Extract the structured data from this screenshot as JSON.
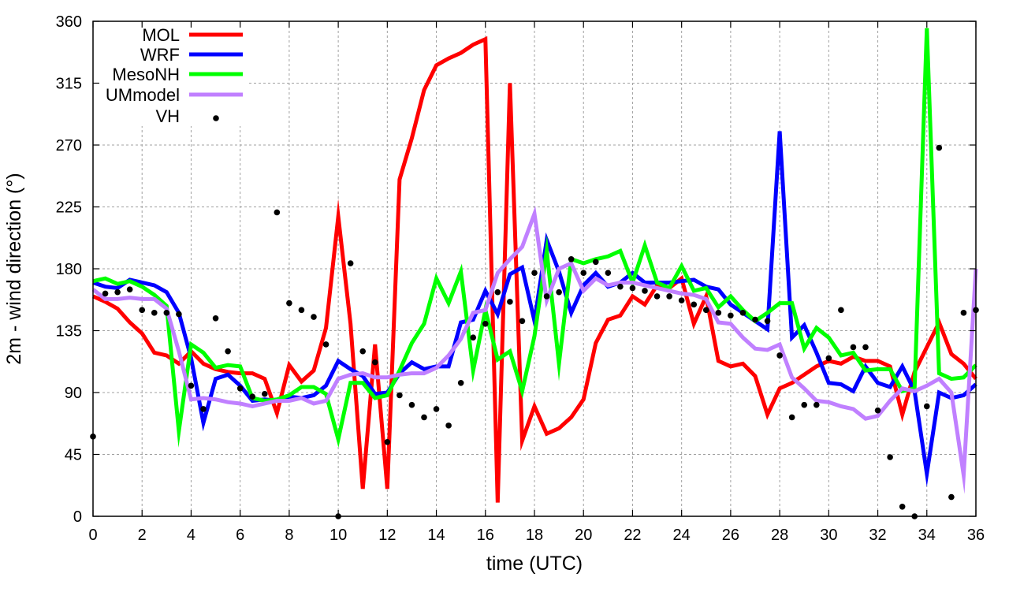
{
  "chart_data": {
    "type": "line",
    "title": "",
    "xlabel": "time (UTC)",
    "ylabel": "2m - wind direction (°)",
    "xlim": [
      0,
      36
    ],
    "ylim": [
      0,
      360
    ],
    "xticks": [
      0,
      2,
      4,
      6,
      8,
      10,
      12,
      14,
      16,
      18,
      20,
      22,
      24,
      26,
      28,
      30,
      32,
      34,
      36
    ],
    "yticks": [
      0,
      45,
      90,
      135,
      180,
      225,
      270,
      315,
      360
    ],
    "grid": true,
    "legend_placement": "top-left",
    "x_step": 0.5,
    "series": [
      {
        "name": "MOL",
        "style": "line",
        "color": "#ff0000",
        "values": [
          160,
          156,
          151,
          141,
          133,
          119,
          117,
          111,
          120,
          111,
          107,
          105,
          104,
          104,
          100,
          75,
          110,
          98,
          106,
          137,
          218,
          140,
          20,
          125,
          20,
          245,
          275,
          310,
          328,
          333,
          337,
          343,
          347,
          10,
          315,
          55,
          80,
          60,
          64,
          72,
          85,
          126,
          143,
          146,
          160,
          154,
          168,
          166,
          173,
          140,
          160,
          113,
          109,
          111,
          102,
          74,
          93,
          97,
          103,
          109,
          113,
          111,
          116,
          113,
          113,
          109,
          74,
          105,
          123,
          141,
          118,
          111,
          100
        ]
      },
      {
        "name": "WRF",
        "style": "line",
        "color": "#0000ff",
        "values": [
          170,
          167,
          166,
          172,
          170,
          168,
          163,
          148,
          115,
          68,
          100,
          103,
          95,
          84,
          85,
          84,
          87,
          86,
          88,
          95,
          113,
          107,
          102,
          89,
          90,
          104,
          112,
          107,
          109,
          109,
          141,
          143,
          164,
          147,
          176,
          181,
          142,
          201,
          178,
          148,
          168,
          177,
          167,
          170,
          177,
          170,
          170,
          170,
          171,
          172,
          167,
          165,
          154,
          148,
          142,
          136,
          280,
          130,
          139,
          119,
          97,
          96,
          91,
          109,
          97,
          94,
          109,
          91,
          31,
          90,
          86,
          88,
          96
        ]
      },
      {
        "name": "MesoNH",
        "style": "line",
        "color": "#00ff00",
        "values": [
          171,
          173,
          169,
          171,
          167,
          161,
          153,
          62,
          125,
          119,
          108,
          110,
          109,
          86,
          84,
          85,
          88,
          94,
          94,
          89,
          56,
          97,
          97,
          86,
          88,
          106,
          126,
          140,
          173,
          155,
          178,
          106,
          150,
          114,
          120,
          91,
          131,
          193,
          111,
          187,
          184,
          187,
          189,
          193,
          170,
          197,
          170,
          166,
          182,
          164,
          166,
          152,
          160,
          150,
          142,
          148,
          155,
          155,
          122,
          137,
          130,
          117,
          119,
          106,
          107,
          107,
          91,
          93,
          355,
          104,
          100,
          101,
          110
        ]
      },
      {
        "name": "UMmodel",
        "style": "line",
        "color": "#c080ff",
        "values": [
          165,
          158,
          158,
          159,
          158,
          158,
          151,
          120,
          85,
          86,
          85,
          83,
          82,
          80,
          82,
          84,
          84,
          86,
          82,
          84,
          100,
          103,
          104,
          101,
          101,
          103,
          104,
          104,
          108,
          117,
          129,
          148,
          150,
          177,
          187,
          196,
          220,
          157,
          180,
          184,
          164,
          173,
          168,
          170,
          170,
          168,
          166,
          164,
          162,
          161,
          158,
          141,
          140,
          130,
          122,
          121,
          125,
          101,
          93,
          84,
          83,
          80,
          78,
          71,
          73,
          84,
          93,
          91,
          95,
          100,
          90,
          30,
          180
        ]
      },
      {
        "name": "VH",
        "style": "points",
        "color": "#000000",
        "values": [
          58,
          162,
          163,
          165,
          150,
          148,
          148,
          147,
          95,
          78,
          144,
          120,
          93,
          87,
          89,
          221,
          155,
          150,
          145,
          125,
          0,
          184,
          120,
          112,
          54,
          88,
          81,
          72,
          78,
          66,
          97,
          130,
          140,
          163,
          156,
          142,
          177,
          160,
          163,
          187,
          177,
          185,
          177,
          167,
          166,
          164,
          160,
          160,
          157,
          154,
          150,
          148,
          146,
          148,
          143,
          142,
          117,
          72,
          81,
          81,
          115,
          150,
          123,
          123,
          77,
          43,
          7,
          0,
          80,
          268,
          14,
          148,
          150
        ]
      }
    ]
  }
}
